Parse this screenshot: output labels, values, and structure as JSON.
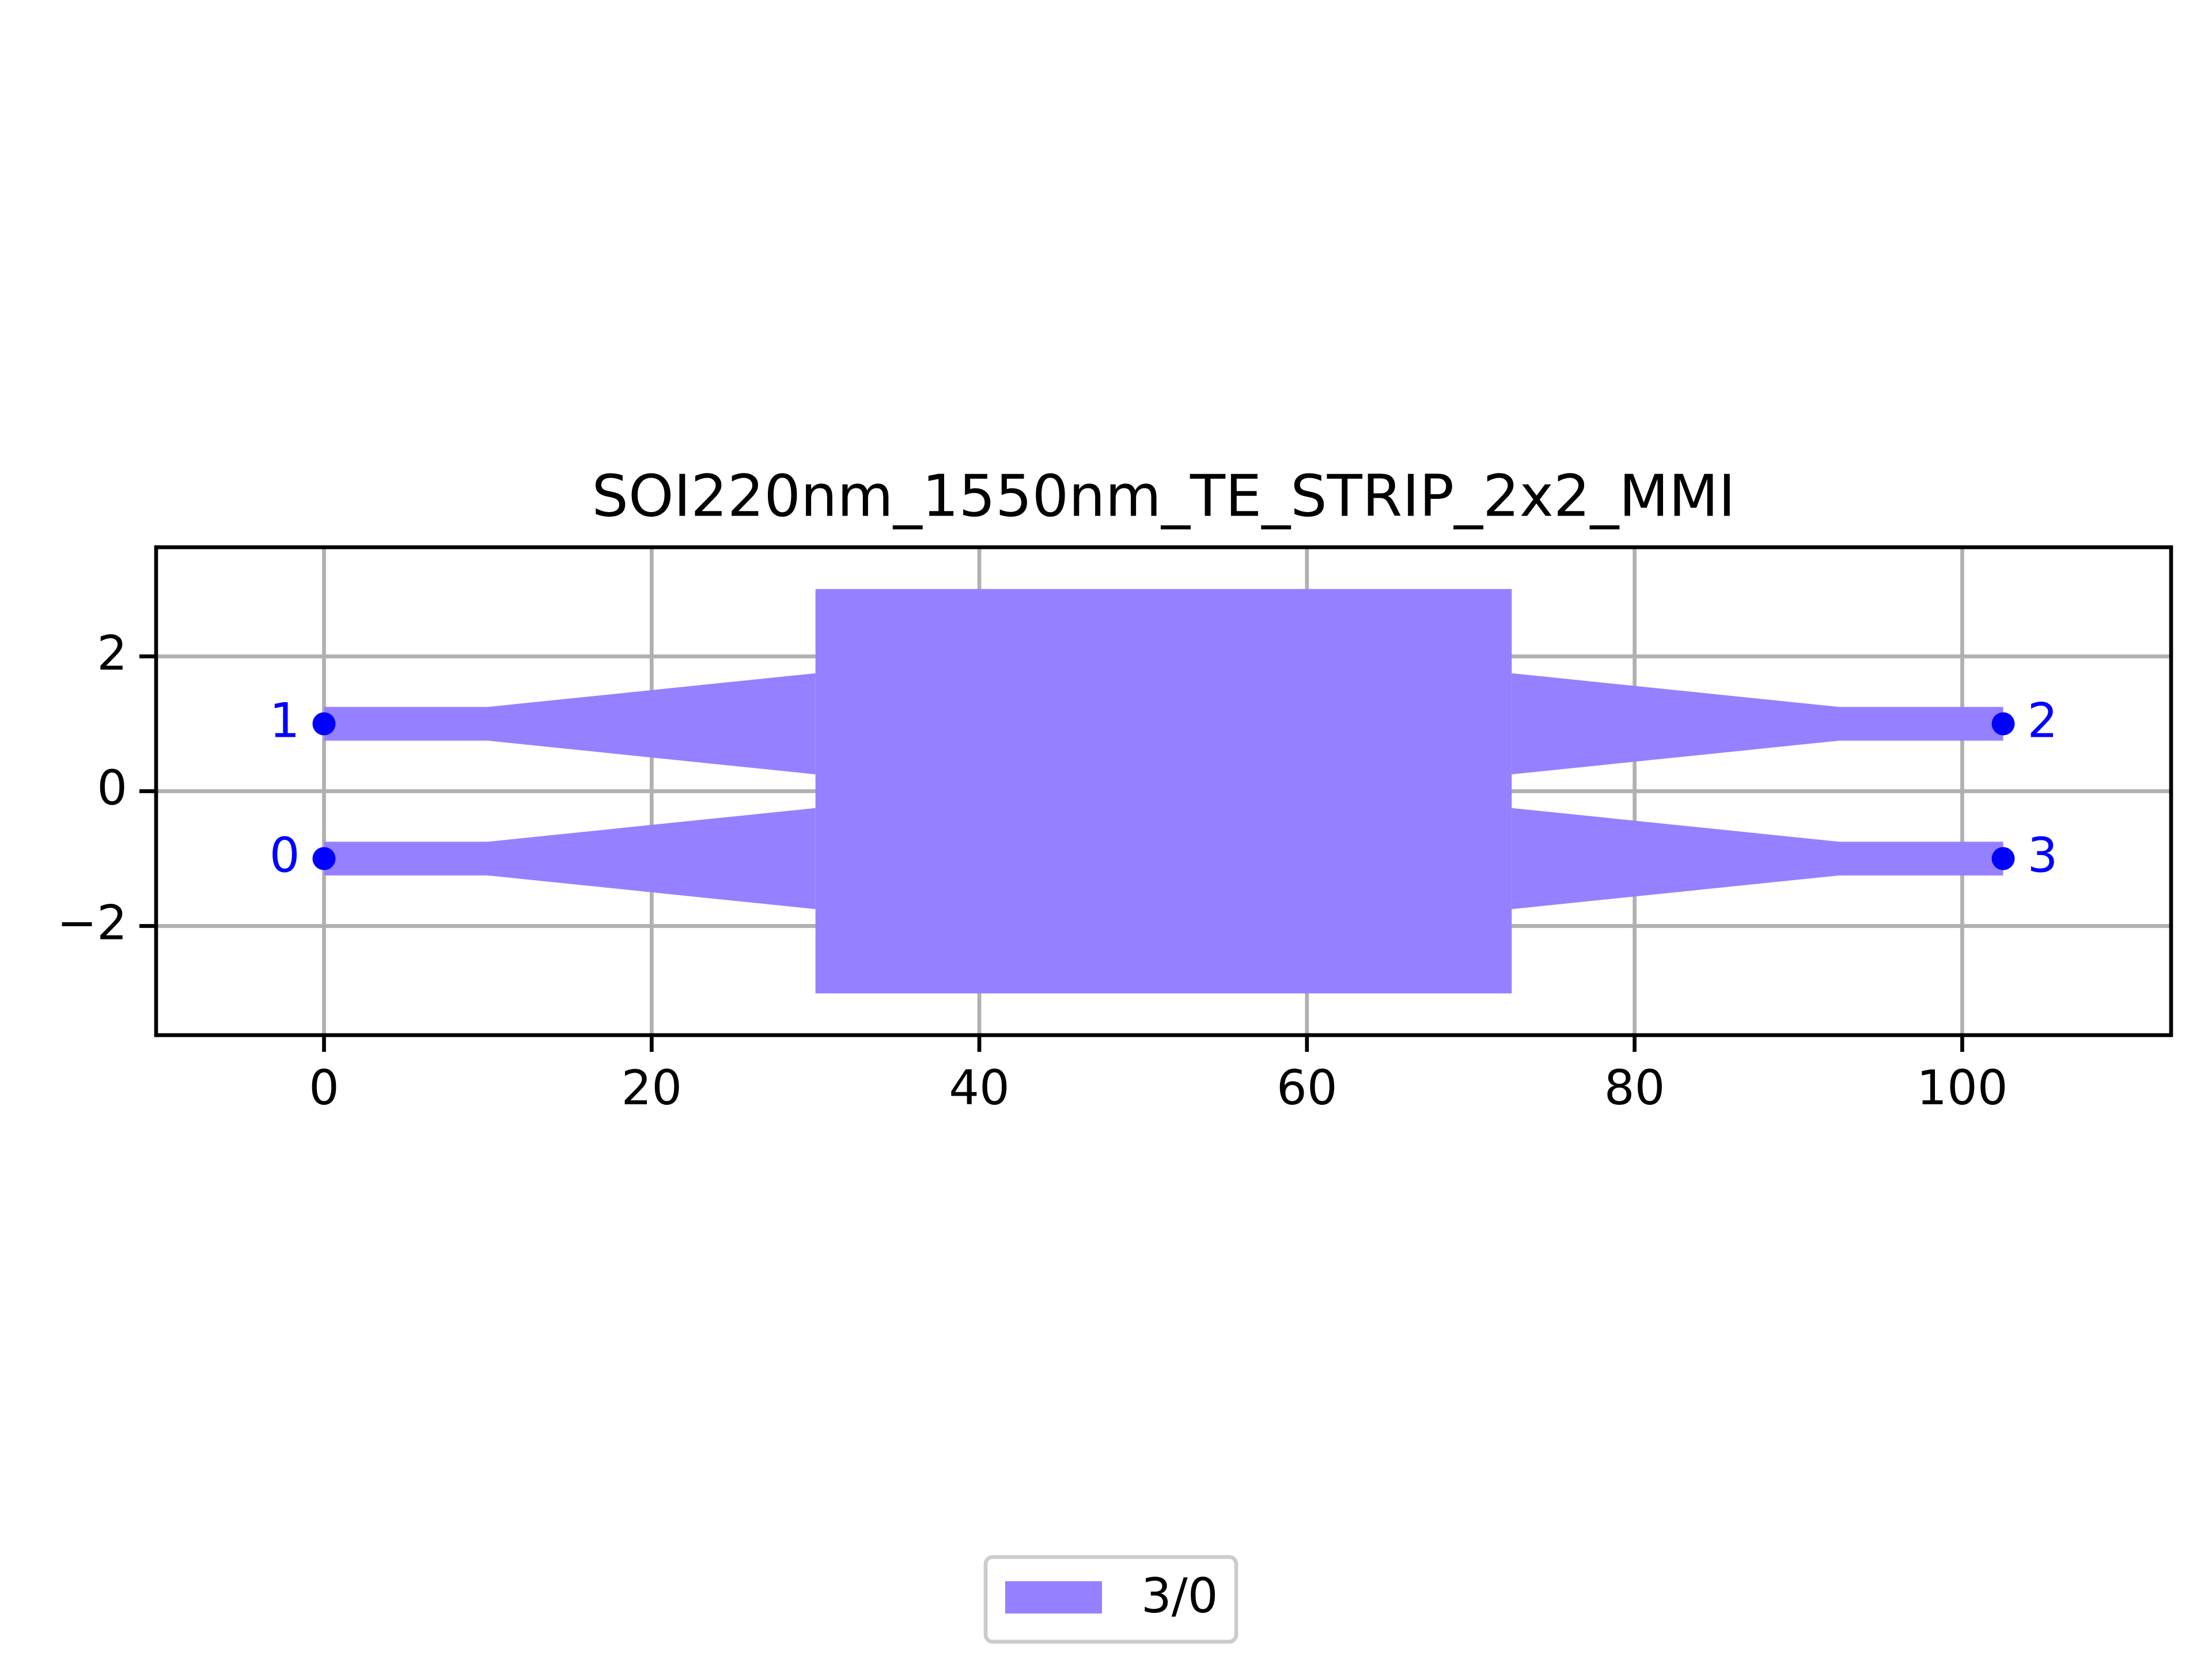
{
  "chart_data": {
    "type": "layout",
    "title": "SOI220nm_1550nm_TE_STRIP_2x2_MMI",
    "xlim": [
      -10.25,
      112.75
    ],
    "ylim": [
      -3.62,
      3.62
    ],
    "xticks": [
      0,
      20,
      40,
      60,
      80,
      100
    ],
    "yticks": [
      {
        "value": -2,
        "label": "−2"
      },
      0,
      2
    ],
    "grid": true,
    "legend": "lower center",
    "series": [
      {
        "name": "3/0",
        "color": "#9580ff",
        "polygons": [
          {
            "x": [
              30,
              72.5,
              72.5,
              30
            ],
            "y": [
              3,
              3,
              -3,
              -3
            ]
          },
          {
            "x": [
              0,
              10,
              30,
              30,
              10,
              0
            ],
            "y": [
              1.25,
              1.25,
              1.75,
              0.25,
              0.75,
              0.75
            ]
          },
          {
            "x": [
              0,
              10,
              30,
              30,
              10,
              0
            ],
            "y": [
              -0.75,
              -0.75,
              -0.25,
              -1.75,
              -1.25,
              -1.25
            ]
          },
          {
            "x": [
              72.5,
              92.5,
              102.5,
              102.5,
              92.5,
              72.5
            ],
            "y": [
              1.75,
              1.25,
              1.25,
              0.75,
              0.75,
              0.25
            ]
          },
          {
            "x": [
              72.5,
              92.5,
              102.5,
              102.5,
              92.5,
              72.5
            ],
            "y": [
              -0.25,
              -0.75,
              -0.75,
              -1.25,
              -1.25,
              -1.75
            ]
          }
        ]
      }
    ],
    "ports": {
      "color": "#0000ff",
      "labels": [
        "0",
        "1",
        "2",
        "3"
      ],
      "x": [
        0,
        0,
        102.5,
        102.5
      ],
      "y": [
        -1,
        1,
        1,
        -1
      ]
    }
  }
}
